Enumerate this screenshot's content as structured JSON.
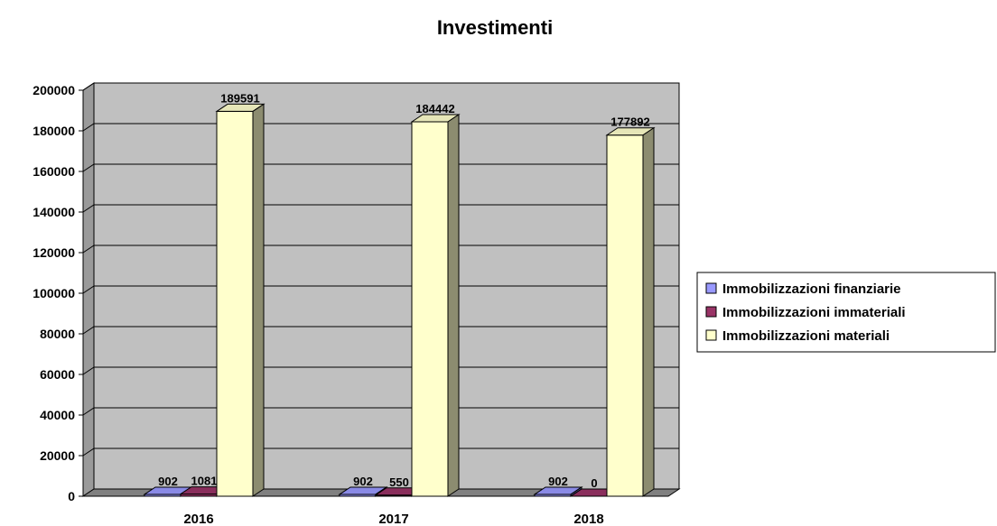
{
  "chart_data": {
    "type": "bar",
    "title": "Investimenti",
    "categories": [
      "2016",
      "2017",
      "2018"
    ],
    "series": [
      {
        "name": "Immobilizzazioni finanziarie",
        "values": [
          902,
          902,
          902
        ],
        "color": "#9999ff"
      },
      {
        "name": "Immobilizzazioni immateriali",
        "values": [
          1081,
          550,
          0
        ],
        "color": "#993366"
      },
      {
        "name": "Immobilizzazioni materiali",
        "values": [
          189591,
          184442,
          177892
        ],
        "color": "#ffffcc"
      }
    ],
    "y_ticks": [
      "0",
      "20000",
      "40000",
      "60000",
      "80000",
      "100000",
      "120000",
      "140000",
      "160000",
      "180000",
      "200000"
    ],
    "ylim": [
      0,
      200000
    ],
    "grid": true,
    "legend_position": "right",
    "style": "3d-column",
    "plot_background": "#c0c0c0",
    "floor_color": "#808080"
  }
}
